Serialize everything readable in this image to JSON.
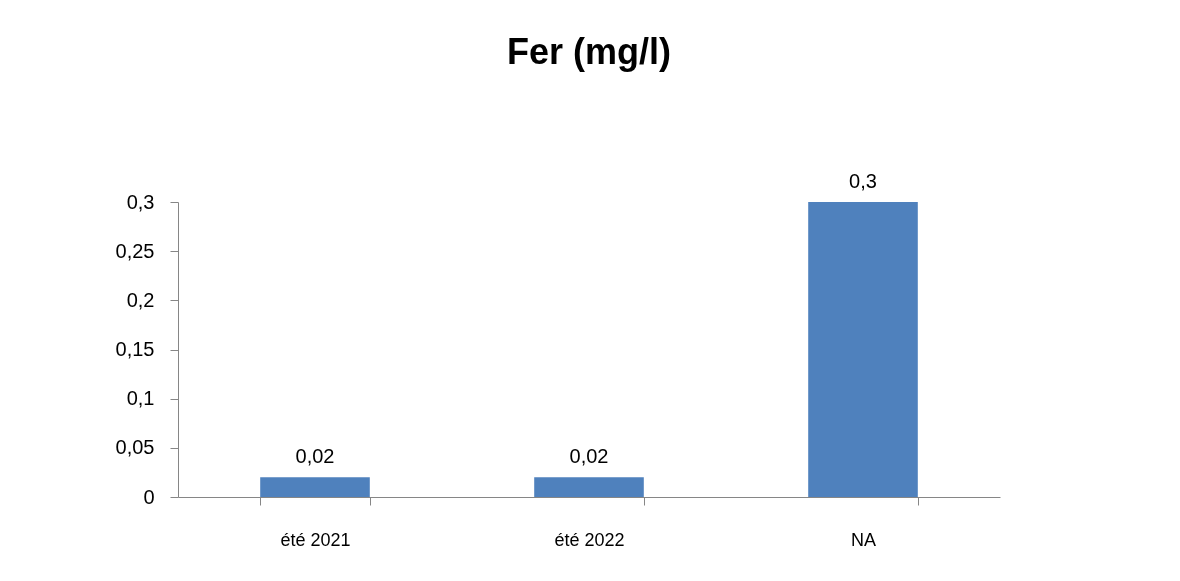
{
  "chart_data": {
    "type": "bar",
    "title": "Fer (mg/l)",
    "categories": [
      "été 2021",
      "été 2022",
      "NA"
    ],
    "values": [
      0.02,
      0.02,
      0.3
    ],
    "color": "#4f81bd",
    "value_labels": [
      "0,02",
      "0,02",
      "0,3"
    ],
    "ylim": [
      0,
      0.3
    ],
    "yticks": [
      0,
      {
        "value": 0.05,
        "label": "0,05"
      },
      {
        "value": 0.1,
        "label": "0,1"
      },
      {
        "value": 0.15,
        "label": "0,15"
      },
      {
        "value": 0.2,
        "label": "0,2"
      },
      {
        "value": 0.25,
        "label": "0,25"
      },
      {
        "value": 0.3,
        "label": "0,3"
      }
    ]
  }
}
